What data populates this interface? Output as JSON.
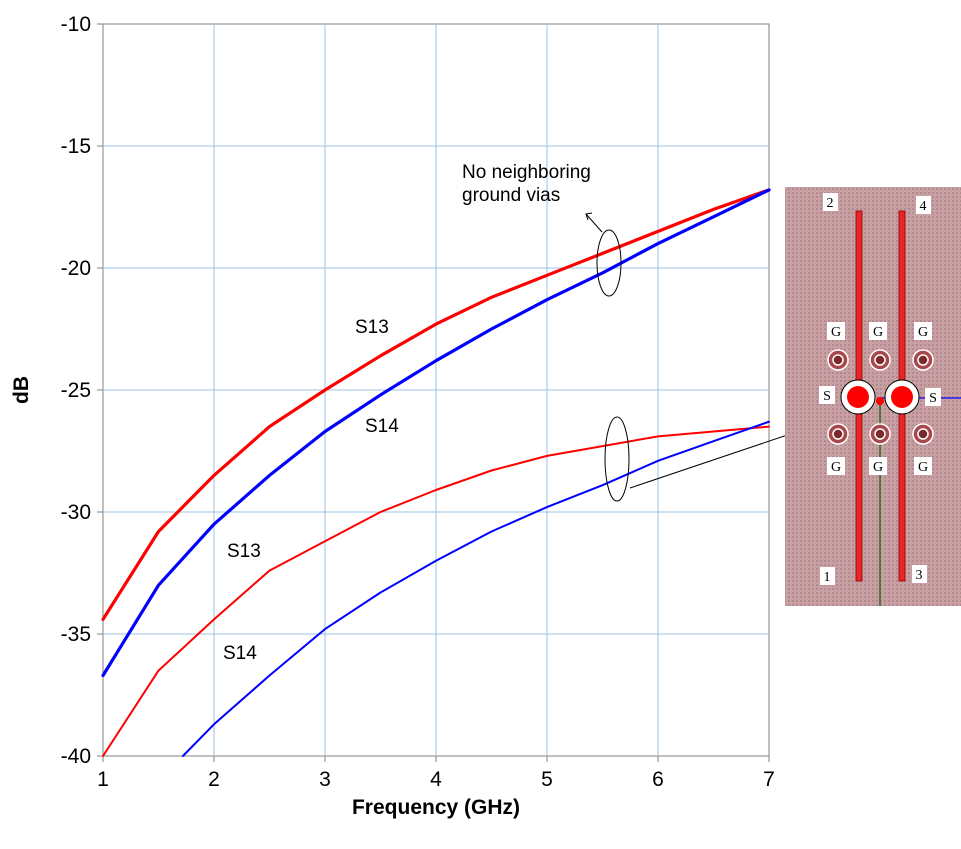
{
  "chart_data": {
    "type": "line",
    "xlabel": "Frequency (GHz)",
    "ylabel": "dB",
    "xlim": [
      1,
      7
    ],
    "ylim": [
      -40,
      -10
    ],
    "x_ticks": [
      "1",
      "2",
      "3",
      "4",
      "5",
      "6",
      "7"
    ],
    "y_ticks": [
      "-10",
      "-15",
      "-20",
      "-25",
      "-30",
      "-35",
      "-40"
    ],
    "grid": true,
    "series": [
      {
        "group": "No neighboring ground vias",
        "name": "S13",
        "color": "#ff0000",
        "thick": true,
        "points": [
          [
            1,
            -34.4
          ],
          [
            1.5,
            -30.8
          ],
          [
            2,
            -28.5
          ],
          [
            2.5,
            -26.5
          ],
          [
            3,
            -25.0
          ],
          [
            3.5,
            -23.6
          ],
          [
            4,
            -22.3
          ],
          [
            4.5,
            -21.2
          ],
          [
            5,
            -20.3
          ],
          [
            5.5,
            -19.4
          ],
          [
            6,
            -18.5
          ],
          [
            6.5,
            -17.6
          ],
          [
            7,
            -16.8
          ]
        ]
      },
      {
        "group": "No neighboring ground vias",
        "name": "S14",
        "color": "#0000ff",
        "thick": true,
        "points": [
          [
            1,
            -36.7
          ],
          [
            1.5,
            -33.0
          ],
          [
            2,
            -30.5
          ],
          [
            2.5,
            -28.5
          ],
          [
            3,
            -26.7
          ],
          [
            3.5,
            -25.2
          ],
          [
            4,
            -23.8
          ],
          [
            4.5,
            -22.5
          ],
          [
            5,
            -21.3
          ],
          [
            5.5,
            -20.2
          ],
          [
            6,
            -19.0
          ],
          [
            6.5,
            -17.9
          ],
          [
            7,
            -16.8
          ]
        ]
      },
      {
        "name": "S13",
        "color": "#ff0000",
        "thick": false,
        "points": [
          [
            1,
            -40.0
          ],
          [
            1.5,
            -36.5
          ],
          [
            2,
            -34.4
          ],
          [
            2.5,
            -32.4
          ],
          [
            3,
            -31.2
          ],
          [
            3.5,
            -30.0
          ],
          [
            4,
            -29.1
          ],
          [
            4.5,
            -28.3
          ],
          [
            5,
            -27.7
          ],
          [
            5.5,
            -27.3
          ],
          [
            6,
            -26.9
          ],
          [
            6.5,
            -26.7
          ],
          [
            7,
            -26.5
          ]
        ]
      },
      {
        "name": "S14",
        "color": "#0000ff",
        "thick": false,
        "points": [
          [
            1.72,
            -40.0
          ],
          [
            2,
            -38.7
          ],
          [
            2.5,
            -36.7
          ],
          [
            3,
            -34.8
          ],
          [
            3.5,
            -33.3
          ],
          [
            4,
            -32.0
          ],
          [
            4.5,
            -30.8
          ],
          [
            5,
            -29.8
          ],
          [
            5.5,
            -28.9
          ],
          [
            6,
            -27.9
          ],
          [
            6.5,
            -27.1
          ],
          [
            7,
            -26.3
          ]
        ]
      }
    ],
    "annotations": {
      "no_ground_vias": [
        "No neighboring",
        "ground vias"
      ],
      "s13_upper": "S13",
      "s14_upper": "S14",
      "s13_lower": "S13",
      "s14_lower": "S14"
    }
  },
  "inset": {
    "description_labels": {
      "port_1": "1",
      "port_2": "2",
      "port_3": "3",
      "port_4": "4",
      "signal": "S",
      "ground": "G"
    },
    "colors": {
      "board": "#c8a0a4",
      "signal_trace": "#e8262a",
      "ground_via": "#7a2a2a",
      "line_blue": "#0000ff",
      "line_green": "#006400"
    }
  }
}
